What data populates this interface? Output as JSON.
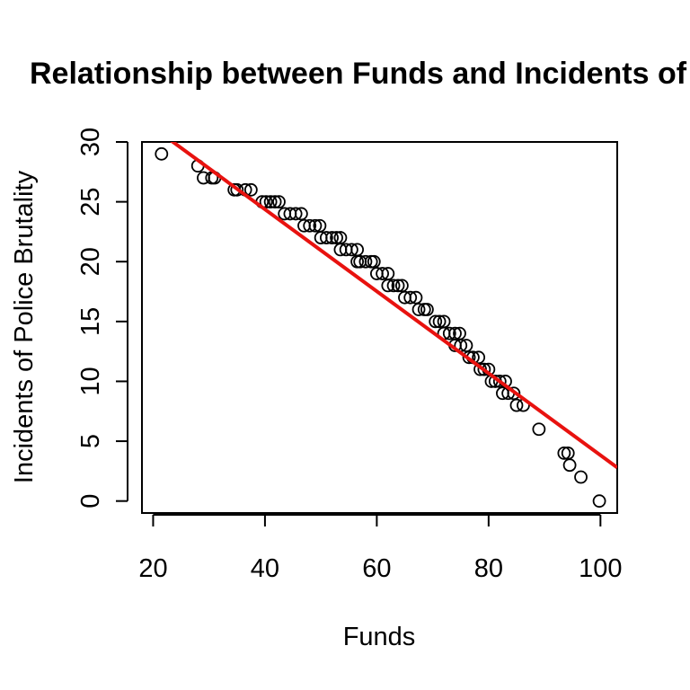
{
  "chart_data": {
    "type": "scatter",
    "title": "Relationship between Funds and Incidents of Police Brutality",
    "xlabel": "Funds",
    "ylabel": "Incidents of Police Brutality",
    "xlim": [
      18,
      103
    ],
    "ylim": [
      -1,
      30
    ],
    "x_ticks": [
      20,
      40,
      60,
      80,
      100
    ],
    "y_ticks": [
      0,
      5,
      10,
      15,
      20,
      25,
      30
    ],
    "grid": false,
    "legend": "none",
    "point_color": "#000000",
    "line_color": "#e8120f",
    "regression_line": {
      "x": [
        18,
        103
      ],
      "y": [
        31.9,
        2.8
      ]
    },
    "points": [
      [
        21.5,
        29
      ],
      [
        28,
        28
      ],
      [
        29,
        27
      ],
      [
        30.5,
        27
      ],
      [
        31,
        27
      ],
      [
        34.5,
        26
      ],
      [
        35,
        26
      ],
      [
        36.5,
        26
      ],
      [
        37.5,
        26
      ],
      [
        39.5,
        25
      ],
      [
        40.2,
        25
      ],
      [
        41,
        25
      ],
      [
        41.8,
        25
      ],
      [
        42.5,
        25
      ],
      [
        43.5,
        24
      ],
      [
        44.5,
        24
      ],
      [
        45.5,
        24
      ],
      [
        46.5,
        24
      ],
      [
        47,
        23
      ],
      [
        48,
        23
      ],
      [
        49,
        23
      ],
      [
        49.8,
        23
      ],
      [
        50,
        22
      ],
      [
        51,
        22
      ],
      [
        52,
        22
      ],
      [
        52.8,
        22
      ],
      [
        53.5,
        22
      ],
      [
        53.5,
        21
      ],
      [
        54.5,
        21
      ],
      [
        55.5,
        21
      ],
      [
        56.5,
        21
      ],
      [
        56.5,
        20
      ],
      [
        57,
        20
      ],
      [
        58,
        20
      ],
      [
        59,
        20
      ],
      [
        59.5,
        20
      ],
      [
        60,
        19
      ],
      [
        61,
        19
      ],
      [
        62,
        19
      ],
      [
        62,
        18
      ],
      [
        63,
        18
      ],
      [
        63.8,
        18
      ],
      [
        64.5,
        18
      ],
      [
        65,
        17
      ],
      [
        66,
        17
      ],
      [
        67,
        17
      ],
      [
        67.5,
        16
      ],
      [
        68.5,
        16
      ],
      [
        69,
        16
      ],
      [
        70.5,
        15
      ],
      [
        71.2,
        15
      ],
      [
        72,
        15
      ],
      [
        72,
        14
      ],
      [
        73,
        14
      ],
      [
        74,
        14
      ],
      [
        74.8,
        14
      ],
      [
        74,
        13
      ],
      [
        75,
        13
      ],
      [
        76,
        13
      ],
      [
        76.5,
        12
      ],
      [
        77.2,
        12
      ],
      [
        78.2,
        12
      ],
      [
        78.5,
        11
      ],
      [
        79.2,
        11
      ],
      [
        80,
        11
      ],
      [
        80.5,
        10
      ],
      [
        81.2,
        10
      ],
      [
        82,
        10
      ],
      [
        83,
        10
      ],
      [
        82.5,
        9
      ],
      [
        83.5,
        9
      ],
      [
        84.5,
        9
      ],
      [
        85,
        8
      ],
      [
        86.2,
        8
      ],
      [
        89,
        6
      ],
      [
        93.5,
        4
      ],
      [
        94.2,
        4
      ],
      [
        94.5,
        3
      ],
      [
        96.5,
        2
      ],
      [
        99.8,
        0
      ]
    ]
  }
}
